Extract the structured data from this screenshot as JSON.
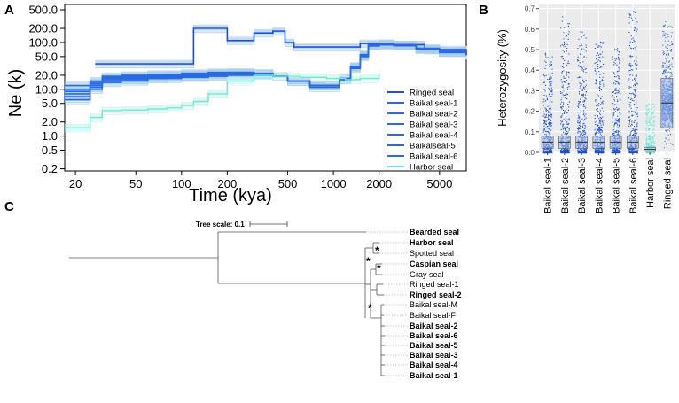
{
  "panels": {
    "a": "A",
    "b": "B",
    "c": "C"
  },
  "colors": {
    "ringed": "#1f4fd6",
    "baikal": "#2a6ae0",
    "baikal_band": "#a7cdf0",
    "harbor": "#6ee8d4",
    "box_fill": "#9ab4e6"
  },
  "chart_data": [
    {
      "type": "line",
      "panel": "A",
      "xlabel": "Time (kya)",
      "ylabel": "Ne (k)",
      "xscale": "log",
      "yscale": "log",
      "xlim": [
        17,
        7500
      ],
      "ylim": [
        0.18,
        650
      ],
      "xticks": [
        20,
        50,
        100,
        200,
        500,
        1000,
        2000,
        5000
      ],
      "xtick_labels": [
        "20",
        "50",
        "100",
        "200",
        "500",
        "1000",
        "2000",
        "5000"
      ],
      "yticks": [
        0.2,
        0.5,
        1.0,
        2.0,
        5.0,
        10.0,
        20.0,
        50.0,
        100.0,
        200.0,
        500.0
      ],
      "ytick_labels": [
        "0.2",
        "0.5",
        "1.0",
        "2.0",
        "5.0",
        "10.0",
        "20.0",
        "50.0",
        "100.0",
        "200.0",
        "500.0"
      ],
      "legend": [
        "Ringed seal",
        "Baikal seal-1",
        "Baikal seal-2",
        "Baikal seal-3",
        "Baikal seal-4",
        "Baikalseal-5",
        "Baikal seal-6",
        "Harbor seal"
      ],
      "series": [
        {
          "name": "Ringed seal",
          "x": [
            27,
            45,
            85,
            120,
            160,
            200,
            240,
            300,
            400,
            480,
            550,
            700,
            1000,
            1500,
            2500,
            4000,
            7500
          ],
          "y": [
            35,
            35,
            35,
            200,
            200,
            110,
            110,
            160,
            175,
            100,
            80,
            80,
            80,
            95,
            90,
            70,
            55
          ]
        },
        {
          "name": "Baikal seal-1",
          "x": [
            17,
            20,
            25,
            30,
            40,
            60,
            80,
            100,
            150,
            200,
            300,
            400,
            500,
            700,
            900,
            1100,
            1300,
            1500,
            1700,
            2000,
            2500,
            3500,
            5000,
            7500
          ],
          "y": [
            6,
            6,
            10,
            14,
            15,
            17,
            17,
            18,
            19,
            20,
            20,
            19,
            15,
            11,
            11,
            16,
            28,
            50,
            90,
            95,
            90,
            75,
            65,
            55
          ]
        },
        {
          "name": "Baikal seal-2",
          "x": [
            17,
            20,
            25,
            30,
            40,
            60,
            80,
            100,
            150,
            200,
            300,
            400,
            500,
            700,
            900,
            1100,
            1300,
            1500,
            1700,
            2000,
            2500,
            3500,
            5000,
            7500
          ],
          "y": [
            7,
            7,
            11,
            15,
            16,
            17,
            18,
            19,
            20,
            21,
            21,
            19,
            15,
            12,
            12,
            16,
            30,
            55,
            88,
            92,
            88,
            72,
            63,
            54
          ]
        },
        {
          "name": "Baikal seal-3",
          "x": [
            17,
            20,
            25,
            30,
            40,
            60,
            80,
            100,
            150,
            200,
            300,
            400,
            500,
            700,
            900,
            1100,
            1300,
            1500,
            1700,
            2000,
            2500,
            3500,
            5000,
            7500
          ],
          "y": [
            8,
            8,
            12,
            16,
            17,
            18,
            19,
            20,
            21,
            22,
            21,
            19,
            15,
            12,
            12,
            17,
            30,
            52,
            85,
            90,
            86,
            72,
            62,
            54
          ]
        },
        {
          "name": "Baikal seal-4",
          "x": [
            17,
            20,
            25,
            30,
            40,
            60,
            80,
            100,
            150,
            200,
            300,
            400,
            500,
            700,
            900,
            1100,
            1300,
            1500,
            1700,
            2000,
            2500,
            3500,
            5000,
            7500
          ],
          "y": [
            9,
            9,
            13,
            17,
            18,
            19,
            20,
            21,
            22,
            22,
            21,
            19,
            15,
            12,
            12,
            17,
            31,
            54,
            86,
            91,
            87,
            73,
            62,
            53
          ]
        },
        {
          "name": "Baikalseal-5",
          "x": [
            17,
            20,
            25,
            30,
            40,
            60,
            80,
            100,
            150,
            200,
            300,
            400,
            500,
            700,
            900,
            1100,
            1300,
            1500,
            1700,
            2000,
            2500,
            3500,
            5000,
            7500
          ],
          "y": [
            10,
            10,
            14,
            18,
            19,
            20,
            20,
            21,
            22,
            23,
            22,
            19,
            15,
            12,
            12,
            17,
            30,
            53,
            84,
            89,
            85,
            72,
            61,
            53
          ]
        },
        {
          "name": "Baikal seal-6",
          "x": [
            17,
            20,
            25,
            30,
            40,
            60,
            80,
            100,
            150,
            200,
            300,
            400,
            500,
            700,
            900,
            1100,
            1300,
            1500,
            1700,
            2000,
            2500,
            3500,
            5000,
            7500
          ],
          "y": [
            12,
            12,
            15,
            19,
            20,
            21,
            21,
            22,
            23,
            23,
            22,
            19,
            15,
            12,
            12,
            17,
            31,
            54,
            85,
            90,
            86,
            73,
            62,
            54
          ]
        },
        {
          "name": "Harbor seal",
          "x": [
            17,
            20,
            25,
            30,
            40,
            60,
            80,
            100,
            120,
            150,
            200,
            300,
            400,
            600,
            900,
            1200,
            1500,
            2000
          ],
          "y": [
            1.5,
            1.5,
            2.5,
            3.5,
            3.6,
            3.8,
            4.0,
            4.5,
            5.5,
            8,
            15,
            20,
            19,
            18,
            17,
            16,
            17,
            22
          ]
        }
      ]
    },
    {
      "type": "box",
      "panel": "B",
      "ylabel": "Heterozygosity (%)",
      "ylim": [
        0.0,
        0.72
      ],
      "yticks": [
        0.0,
        0.1,
        0.2,
        0.3,
        0.4,
        0.5,
        0.6,
        0.7
      ],
      "ytick_labels": [
        "0.0",
        "0.1",
        "0.2",
        "0.3",
        "0.4",
        "0.5",
        "0.6",
        "0.7"
      ],
      "categories": [
        "Baikal seal-1",
        "Baikal seal-2",
        "Baikal seal-3",
        "Baikal seal-4",
        "Baikal seal-5",
        "Baikal seal-6",
        "Harbor seal",
        "Ringed seal"
      ],
      "boxes": [
        {
          "q1": 0.02,
          "median": 0.05,
          "q3": 0.08,
          "max_outlier": 0.49
        },
        {
          "q1": 0.02,
          "median": 0.05,
          "q3": 0.08,
          "max_outlier": 0.67
        },
        {
          "q1": 0.02,
          "median": 0.05,
          "q3": 0.08,
          "max_outlier": 0.59
        },
        {
          "q1": 0.02,
          "median": 0.05,
          "q3": 0.08,
          "max_outlier": 0.54
        },
        {
          "q1": 0.02,
          "median": 0.05,
          "q3": 0.08,
          "max_outlier": 0.52
        },
        {
          "q1": 0.02,
          "median": 0.05,
          "q3": 0.08,
          "max_outlier": 0.69
        },
        {
          "q1": 0.005,
          "median": 0.015,
          "q3": 0.025,
          "max_outlier": 0.24
        },
        {
          "q1": 0.12,
          "median": 0.24,
          "q3": 0.36,
          "max_outlier": 0.72
        }
      ]
    }
  ],
  "tree": {
    "scale_label": "Tree scale: 0.1",
    "star": "*",
    "leaves": [
      {
        "name": "Bearded seal",
        "bold": true
      },
      {
        "name": "Harbor seal",
        "bold": true
      },
      {
        "name": "Spotted seal",
        "bold": false
      },
      {
        "name": "Caspian seal",
        "bold": true
      },
      {
        "name": "Gray seal",
        "bold": false
      },
      {
        "name": "Ringed seal-1",
        "bold": false
      },
      {
        "name": "Ringed seal-2",
        "bold": true
      },
      {
        "name": "Baikal seal-M",
        "bold": false
      },
      {
        "name": "Baikal seal-F",
        "bold": false
      },
      {
        "name": "Baikal seal-2",
        "bold": true
      },
      {
        "name": "Baikal seal-6",
        "bold": true
      },
      {
        "name": "Baikal seal-5",
        "bold": true
      },
      {
        "name": "Baikal seal-3",
        "bold": true
      },
      {
        "name": "Baikal seal-4",
        "bold": true
      },
      {
        "name": "Baikal seal-1",
        "bold": true
      }
    ]
  }
}
